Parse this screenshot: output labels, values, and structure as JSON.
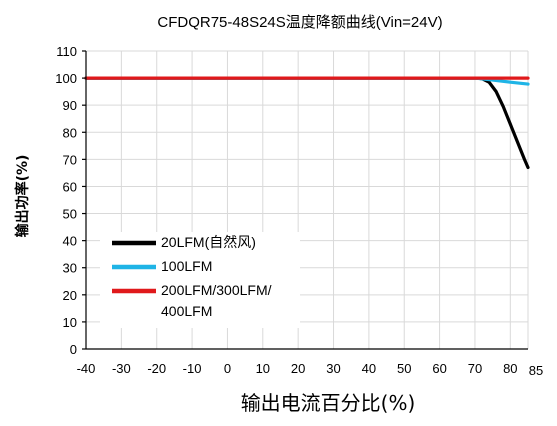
{
  "chart_data": {
    "type": "line",
    "title": "CFDQR75-48S24S温度降额曲线(Vin=24V)",
    "xlabel": "输出电流百分比(%)",
    "ylabel": "输出功率(%)",
    "xlim": [
      -40,
      85
    ],
    "ylim": [
      0,
      110
    ],
    "xticks": [
      "-40",
      "-30",
      "-20",
      "-10",
      "0",
      "10",
      "20",
      "30",
      "40",
      "50",
      "60",
      "70",
      "80",
      "85"
    ],
    "xtick_values": [
      -40,
      -30,
      -20,
      -10,
      0,
      10,
      20,
      30,
      40,
      50,
      60,
      70,
      80,
      85
    ],
    "yticks": [
      "0",
      "10",
      "20",
      "30",
      "40",
      "50",
      "60",
      "70",
      "80",
      "90",
      "100",
      "110"
    ],
    "ytick_values": [
      0,
      10,
      20,
      30,
      40,
      50,
      60,
      70,
      80,
      90,
      100,
      110
    ],
    "grid": true,
    "legend_position": "bottom-left",
    "series": [
      {
        "name": "20LFM(自然风)",
        "color": "#000000",
        "x": [
          -40,
          70,
          72,
          74,
          76,
          78,
          80,
          82,
          84,
          85
        ],
        "y": [
          100,
          100,
          99.8,
          98.5,
          95,
          89.5,
          83,
          76.5,
          70,
          67
        ]
      },
      {
        "name": "100LFM",
        "color": "#1fb4e6",
        "x": [
          -40,
          70,
          75,
          80,
          85
        ],
        "y": [
          100,
          100,
          99.3,
          98.5,
          97.8
        ]
      },
      {
        "name": "200LFM/300LFM/\n400LFM",
        "color": "#e0191b",
        "x": [
          -40,
          85
        ],
        "y": [
          100,
          100
        ]
      }
    ]
  }
}
